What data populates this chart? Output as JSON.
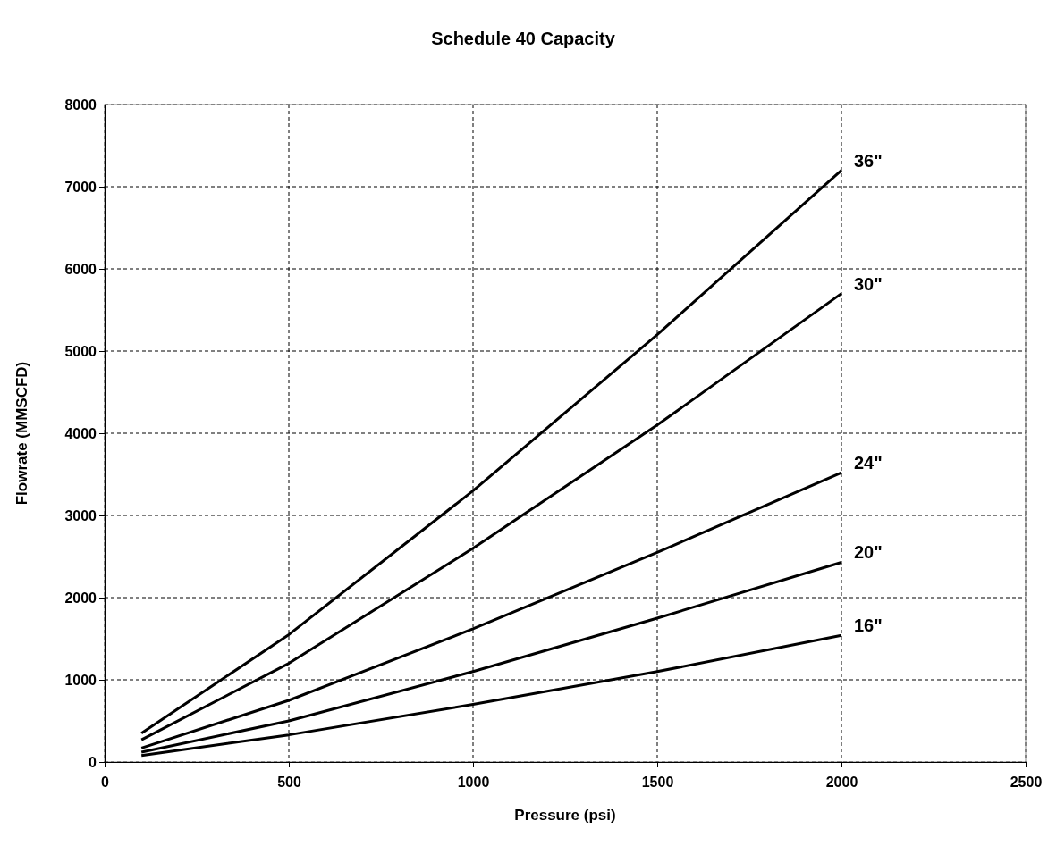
{
  "chart_data": {
    "type": "line",
    "title": "Schedule 40 Capacity",
    "xlabel": "Pressure (psi)",
    "ylabel": "Flowrate (MMSCFD)",
    "x": [
      100,
      500,
      1000,
      1500,
      2000
    ],
    "series": [
      {
        "name": "36\"",
        "color": "#000000",
        "values": [
          350,
          1550,
          3300,
          5200,
          7200
        ]
      },
      {
        "name": "30\"",
        "color": "#000000",
        "values": [
          270,
          1200,
          2600,
          4100,
          5700
        ]
      },
      {
        "name": "24\"",
        "color": "#000000",
        "values": [
          170,
          750,
          1620,
          2550,
          3520
        ]
      },
      {
        "name": "20\"",
        "color": "#000000",
        "values": [
          120,
          500,
          1100,
          1750,
          2430
        ]
      },
      {
        "name": "16\"",
        "color": "#000000",
        "values": [
          80,
          330,
          700,
          1100,
          1540
        ]
      }
    ],
    "xlim": [
      0,
      2500
    ],
    "xticks": [
      0,
      500,
      1000,
      1500,
      2000,
      2500
    ],
    "ylim": [
      0,
      8000
    ],
    "yticks": [
      0,
      1000,
      2000,
      3000,
      4000,
      5000,
      6000,
      7000,
      8000
    ],
    "grid": true,
    "legend": false,
    "marker": "none",
    "line_style": "solid"
  }
}
